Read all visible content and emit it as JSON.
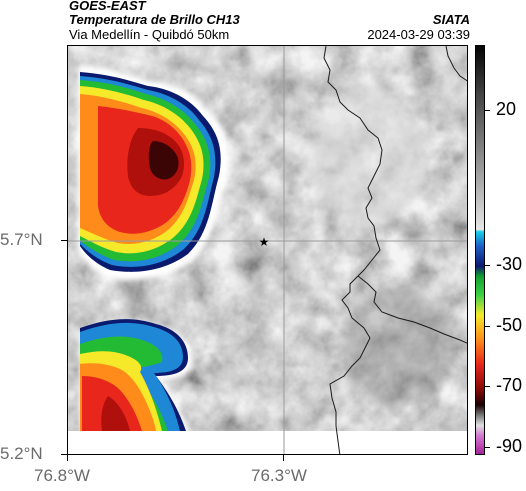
{
  "header": {
    "source": "GOES-EAST",
    "product": "Temperatura de Brillo CH13",
    "region": "Via Medellín - Quibdó 50km",
    "organization": "SIATA",
    "timestamp": "2024-03-29 03:39"
  },
  "map": {
    "lat_labels": [
      "5.7°N",
      "5.2°N"
    ],
    "lon_labels": [
      "76.8°W",
      "76.3°W"
    ],
    "marker_icon": "star-icon",
    "gridline_color": "#9a9a9a",
    "border_color": "#1a1a1a"
  },
  "colorbar": {
    "labels": [
      "20",
      "-30",
      "-50",
      "-70",
      "-90"
    ],
    "range": [
      -95,
      35
    ],
    "unit": ""
  }
}
